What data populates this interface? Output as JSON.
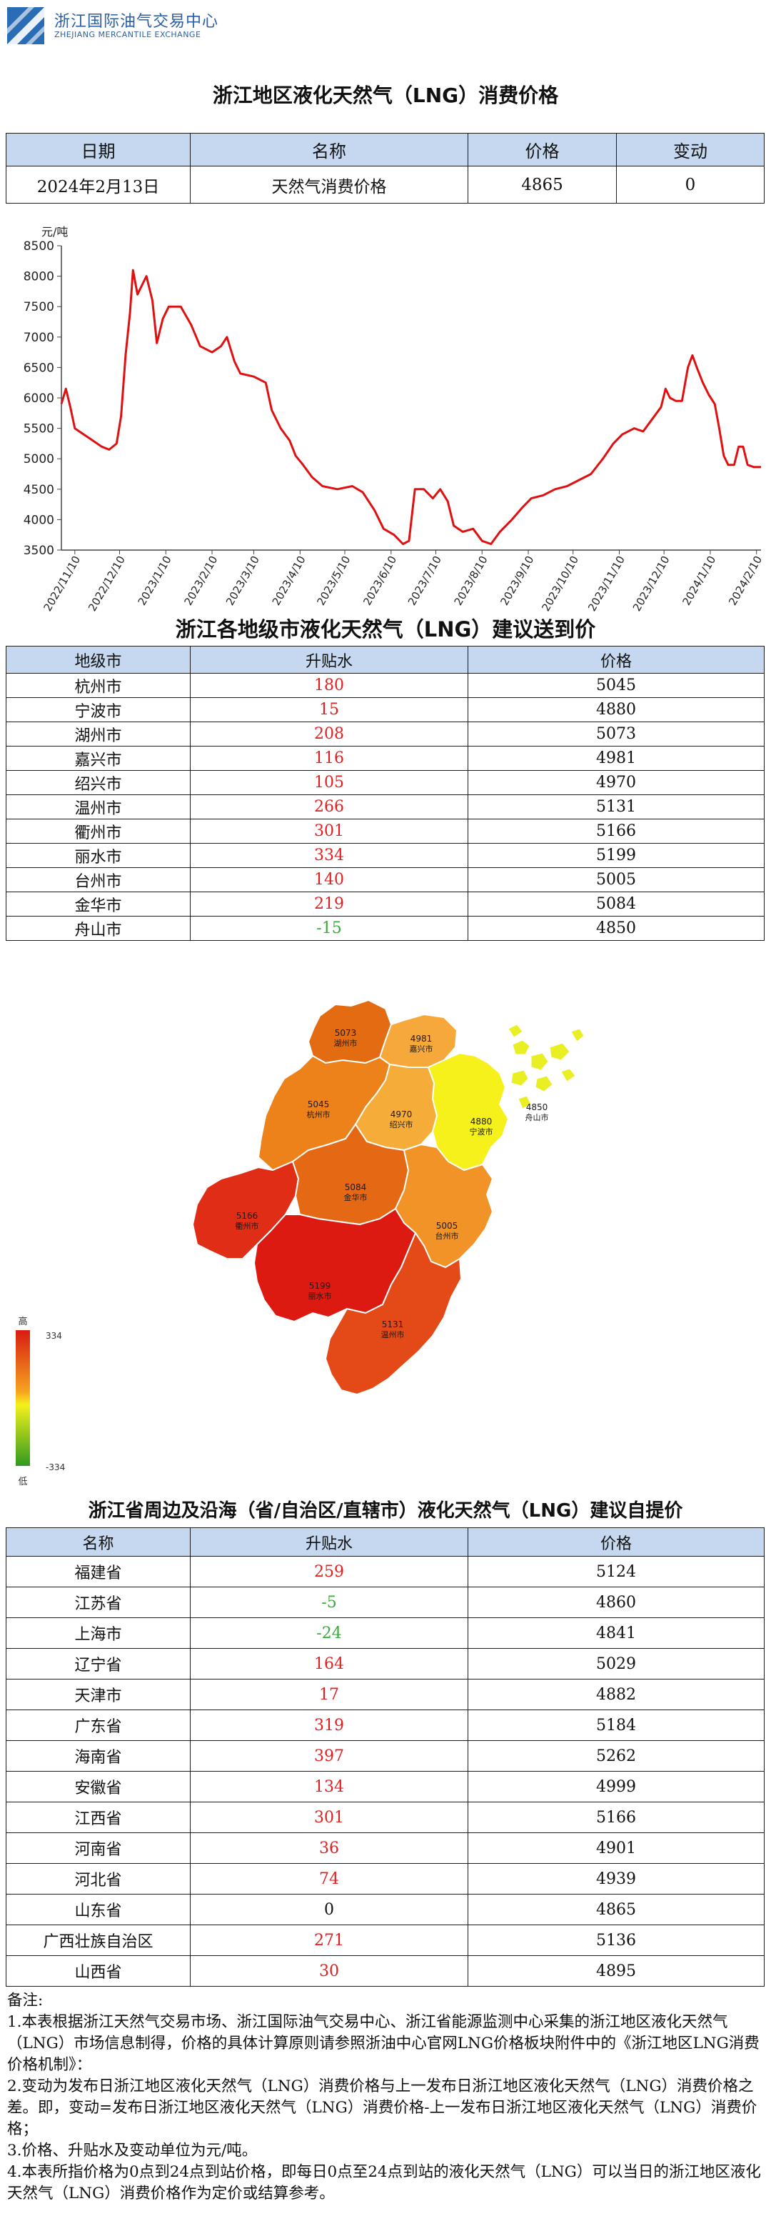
{
  "header": {
    "logo_name": "浙江国际油气交易中心",
    "logo_en": "ZHEJIANG MERCANTILE EXCHANGE"
  },
  "summary": {
    "title": "浙江地区液化天然气（LNG）消费价格",
    "columns": [
      "日期",
      "名称",
      "价格",
      "变动"
    ],
    "row": [
      "2024年2月13日",
      "天然气消费价格",
      "4865",
      "0"
    ]
  },
  "chart_data": {
    "type": "line",
    "title": "",
    "ylabel": "元/吨",
    "xlabel": "",
    "ylim": [
      3500,
      8500
    ],
    "yticks": [
      3500,
      4000,
      4500,
      5000,
      5500,
      6000,
      6500,
      7000,
      7500,
      8000,
      8500
    ],
    "x_tick_labels": [
      "2022/11/10",
      "2022/12/10",
      "2023/1/10",
      "2023/2/10",
      "2023/3/10",
      "2023/4/10",
      "2023/5/10",
      "2023/6/10",
      "2023/7/10",
      "2023/8/10",
      "2023/9/10",
      "2023/10/10",
      "2023/11/10",
      "2023/12/10",
      "2024/1/10",
      "2024/2/10"
    ],
    "x_range": [
      "2022-11-01",
      "2024-02-13"
    ],
    "grid": false,
    "line_color": "#e01010",
    "series": [
      {
        "values": [
          [
            "2022-11-01",
            5900
          ],
          [
            "2022-11-04",
            6150
          ],
          [
            "2022-11-07",
            5850
          ],
          [
            "2022-11-10",
            5500
          ],
          [
            "2022-11-16",
            5400
          ],
          [
            "2022-11-22",
            5300
          ],
          [
            "2022-11-28",
            5200
          ],
          [
            "2022-12-03",
            5150
          ],
          [
            "2022-12-08",
            5250
          ],
          [
            "2022-12-11",
            5700
          ],
          [
            "2022-12-14",
            6700
          ],
          [
            "2022-12-17",
            7400
          ],
          [
            "2022-12-19",
            8100
          ],
          [
            "2022-12-22",
            7700
          ],
          [
            "2022-12-25",
            7850
          ],
          [
            "2022-12-28",
            8000
          ],
          [
            "2023-01-01",
            7600
          ],
          [
            "2023-01-04",
            6900
          ],
          [
            "2023-01-08",
            7300
          ],
          [
            "2023-01-12",
            7500
          ],
          [
            "2023-01-20",
            7500
          ],
          [
            "2023-01-27",
            7200
          ],
          [
            "2023-02-02",
            6850
          ],
          [
            "2023-02-10",
            6750
          ],
          [
            "2023-02-16",
            6850
          ],
          [
            "2023-02-20",
            7000
          ],
          [
            "2023-02-25",
            6600
          ],
          [
            "2023-03-01",
            6400
          ],
          [
            "2023-03-10",
            6350
          ],
          [
            "2023-03-18",
            6250
          ],
          [
            "2023-03-22",
            5800
          ],
          [
            "2023-03-28",
            5500
          ],
          [
            "2023-04-03",
            5300
          ],
          [
            "2023-04-07",
            5050
          ],
          [
            "2023-04-12",
            4900
          ],
          [
            "2023-04-18",
            4700
          ],
          [
            "2023-04-25",
            4550
          ],
          [
            "2023-05-05",
            4500
          ],
          [
            "2023-05-15",
            4550
          ],
          [
            "2023-05-22",
            4450
          ],
          [
            "2023-05-30",
            4150
          ],
          [
            "2023-06-05",
            3850
          ],
          [
            "2023-06-12",
            3750
          ],
          [
            "2023-06-18",
            3600
          ],
          [
            "2023-06-22",
            3650
          ],
          [
            "2023-06-26",
            4500
          ],
          [
            "2023-07-02",
            4500
          ],
          [
            "2023-07-08",
            4350
          ],
          [
            "2023-07-13",
            4500
          ],
          [
            "2023-07-18",
            4300
          ],
          [
            "2023-07-22",
            3900
          ],
          [
            "2023-07-28",
            3800
          ],
          [
            "2023-08-04",
            3850
          ],
          [
            "2023-08-10",
            3650
          ],
          [
            "2023-08-16",
            3600
          ],
          [
            "2023-08-22",
            3800
          ],
          [
            "2023-08-30",
            4000
          ],
          [
            "2023-09-06",
            4200
          ],
          [
            "2023-09-12",
            4350
          ],
          [
            "2023-09-20",
            4400
          ],
          [
            "2023-09-28",
            4500
          ],
          [
            "2023-10-06",
            4550
          ],
          [
            "2023-10-14",
            4650
          ],
          [
            "2023-10-22",
            4750
          ],
          [
            "2023-10-30",
            5000
          ],
          [
            "2023-11-06",
            5250
          ],
          [
            "2023-11-12",
            5400
          ],
          [
            "2023-11-20",
            5500
          ],
          [
            "2023-11-26",
            5450
          ],
          [
            "2023-12-02",
            5650
          ],
          [
            "2023-12-08",
            5850
          ],
          [
            "2023-12-11",
            6150
          ],
          [
            "2023-12-14",
            6000
          ],
          [
            "2023-12-18",
            5950
          ],
          [
            "2023-12-22",
            5950
          ],
          [
            "2023-12-26",
            6500
          ],
          [
            "2023-12-29",
            6700
          ],
          [
            "2024-01-01",
            6500
          ],
          [
            "2024-01-05",
            6250
          ],
          [
            "2024-01-09",
            6050
          ],
          [
            "2024-01-13",
            5900
          ],
          [
            "2024-01-16",
            5500
          ],
          [
            "2024-01-19",
            5050
          ],
          [
            "2024-01-22",
            4900
          ],
          [
            "2024-01-26",
            4900
          ],
          [
            "2024-01-29",
            5200
          ],
          [
            "2024-02-01",
            5200
          ],
          [
            "2024-02-04",
            4900
          ],
          [
            "2024-02-08",
            4865
          ],
          [
            "2024-02-13",
            4865
          ]
        ]
      }
    ]
  },
  "city_section": {
    "title": "浙江各地级市液化天然气（LNG）建议送到价",
    "columns": [
      "地级市",
      "升贴水",
      "价格"
    ],
    "rows": [
      [
        "杭州市",
        "180",
        "5045"
      ],
      [
        "宁波市",
        "15",
        "4880"
      ],
      [
        "湖州市",
        "208",
        "5073"
      ],
      [
        "嘉兴市",
        "116",
        "4981"
      ],
      [
        "绍兴市",
        "105",
        "4970"
      ],
      [
        "温州市",
        "266",
        "5131"
      ],
      [
        "衢州市",
        "301",
        "5166"
      ],
      [
        "丽水市",
        "334",
        "5199"
      ],
      [
        "台州市",
        "140",
        "5005"
      ],
      [
        "金华市",
        "219",
        "5084"
      ],
      [
        "舟山市",
        "-15",
        "4850"
      ]
    ]
  },
  "map": {
    "legend_high": "高",
    "legend_low": "低",
    "legend_max": "334",
    "legend_min": "-334",
    "regions": [
      {
        "key": "huzhou",
        "price": "5073",
        "name": "湖州市",
        "color": "#e36b12"
      },
      {
        "key": "jiaxing",
        "price": "4981",
        "name": "嘉兴市",
        "color": "#f7a83a"
      },
      {
        "key": "hangzhou",
        "price": "5045",
        "name": "杭州市",
        "color": "#ec8219"
      },
      {
        "key": "shaoxing",
        "price": "4970",
        "name": "绍兴市",
        "color": "#f6ac38"
      },
      {
        "key": "ningbo",
        "price": "4880",
        "name": "宁波市",
        "color": "#f6f01b"
      },
      {
        "key": "zhoushan",
        "price": "4850",
        "name": "舟山市",
        "color": "#e9ef22"
      },
      {
        "key": "quzhou",
        "price": "5166",
        "name": "衢州市",
        "color": "#e02d15"
      },
      {
        "key": "jinhua",
        "price": "5084",
        "name": "金华市",
        "color": "#e56914"
      },
      {
        "key": "taizhou",
        "price": "5005",
        "name": "台州市",
        "color": "#f19326"
      },
      {
        "key": "lishui",
        "price": "5199",
        "name": "丽水市",
        "color": "#dd1a12"
      },
      {
        "key": "wenzhou",
        "price": "5131",
        "name": "温州市",
        "color": "#e34a17"
      }
    ]
  },
  "province_section": {
    "title": "浙江省周边及沿海（省/自治区/直辖市）液化天然气（LNG）建议自提价",
    "columns": [
      "名称",
      "升贴水",
      "价格"
    ],
    "rows": [
      [
        "福建省",
        "259",
        "5124"
      ],
      [
        "江苏省",
        "-5",
        "4860"
      ],
      [
        "上海市",
        "-24",
        "4841"
      ],
      [
        "辽宁省",
        "164",
        "5029"
      ],
      [
        "天津市",
        "17",
        "4882"
      ],
      [
        "广东省",
        "319",
        "5184"
      ],
      [
        "海南省",
        "397",
        "5262"
      ],
      [
        "安徽省",
        "134",
        "4999"
      ],
      [
        "江西省",
        "301",
        "5166"
      ],
      [
        "河南省",
        "36",
        "4901"
      ],
      [
        "河北省",
        "74",
        "4939"
      ],
      [
        "山东省",
        "0",
        "4865"
      ],
      [
        "广西壮族自治区",
        "271",
        "5136"
      ],
      [
        "山西省",
        "30",
        "4895"
      ]
    ]
  },
  "notes": {
    "heading": "备注:",
    "items": [
      "1.本表根据浙江天然气交易市场、浙江国际油气交易中心、浙江省能源监测中心采集的浙江地区液化天然气（LNG）市场信息制得，价格的具体计算原则请参照浙油中心官网LNG价格板块附件中的《浙江地区LNG消费价格机制》：",
      "2.变动为发布日浙江地区液化天然气（LNG）消费价格与上一发布日浙江地区液化天然气（LNG）消费价格之差。即，变动=发布日浙江地区液化天然气（LNG）消费价格-上一发布日浙江地区液化天然气（LNG）消费价格；",
      "3.价格、升贴水及变动单位为元/吨。",
      "4.本表所指价格为0点到24点到站价格，即每日0点至24点到站的液化天然气（LNG）可以当日的浙江地区液化天然气（LNG）消费价格作为定价或结算参考。"
    ]
  }
}
